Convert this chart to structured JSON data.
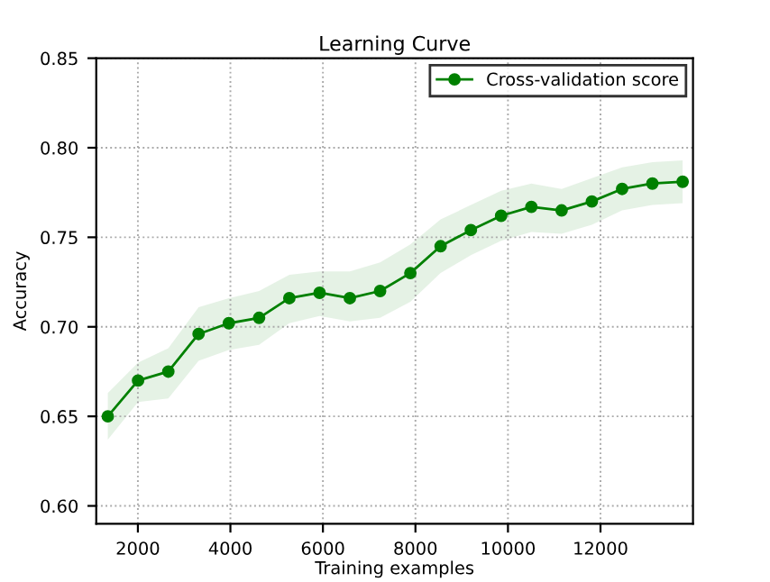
{
  "chart_data": {
    "type": "line",
    "title": "Learning Curve",
    "xlabel": "Training examples",
    "ylabel": "Accuracy",
    "x": [
      1350,
      2004,
      2658,
      3312,
      3966,
      4620,
      5274,
      5928,
      6582,
      7236,
      7890,
      8544,
      9198,
      9852,
      10506,
      11160,
      11814,
      12468,
      13122,
      13776
    ],
    "series": [
      {
        "name": "Cross-validation score",
        "color": "#008000",
        "values": [
          0.65,
          0.67,
          0.675,
          0.696,
          0.702,
          0.705,
          0.716,
          0.719,
          0.716,
          0.72,
          0.73,
          0.745,
          0.754,
          0.762,
          0.767,
          0.765,
          0.77,
          0.777,
          0.78,
          0.781
        ],
        "lower": [
          0.637,
          0.658,
          0.66,
          0.681,
          0.687,
          0.69,
          0.702,
          0.706,
          0.703,
          0.705,
          0.714,
          0.73,
          0.74,
          0.748,
          0.753,
          0.752,
          0.757,
          0.765,
          0.768,
          0.769
        ],
        "upper": [
          0.663,
          0.68,
          0.688,
          0.711,
          0.716,
          0.72,
          0.729,
          0.731,
          0.731,
          0.736,
          0.746,
          0.76,
          0.768,
          0.776,
          0.78,
          0.777,
          0.783,
          0.789,
          0.792,
          0.793
        ]
      }
    ],
    "xlim": [
      1100,
      14000
    ],
    "xticks": [
      2000,
      4000,
      6000,
      8000,
      10000,
      12000
    ],
    "ylim": [
      0.59,
      0.85
    ],
    "yticks": [
      {
        "value": 0.6,
        "label": "0.60"
      },
      {
        "value": 0.65,
        "label": "0.65"
      },
      {
        "value": 0.7,
        "label": "0.70"
      },
      {
        "value": 0.75,
        "label": "0.75"
      },
      {
        "value": 0.8,
        "label": "0.80"
      },
      {
        "value": 0.85,
        "label": "0.85"
      }
    ],
    "grid": true,
    "legend": "top right",
    "marker": "circle",
    "line_style": "solid"
  }
}
